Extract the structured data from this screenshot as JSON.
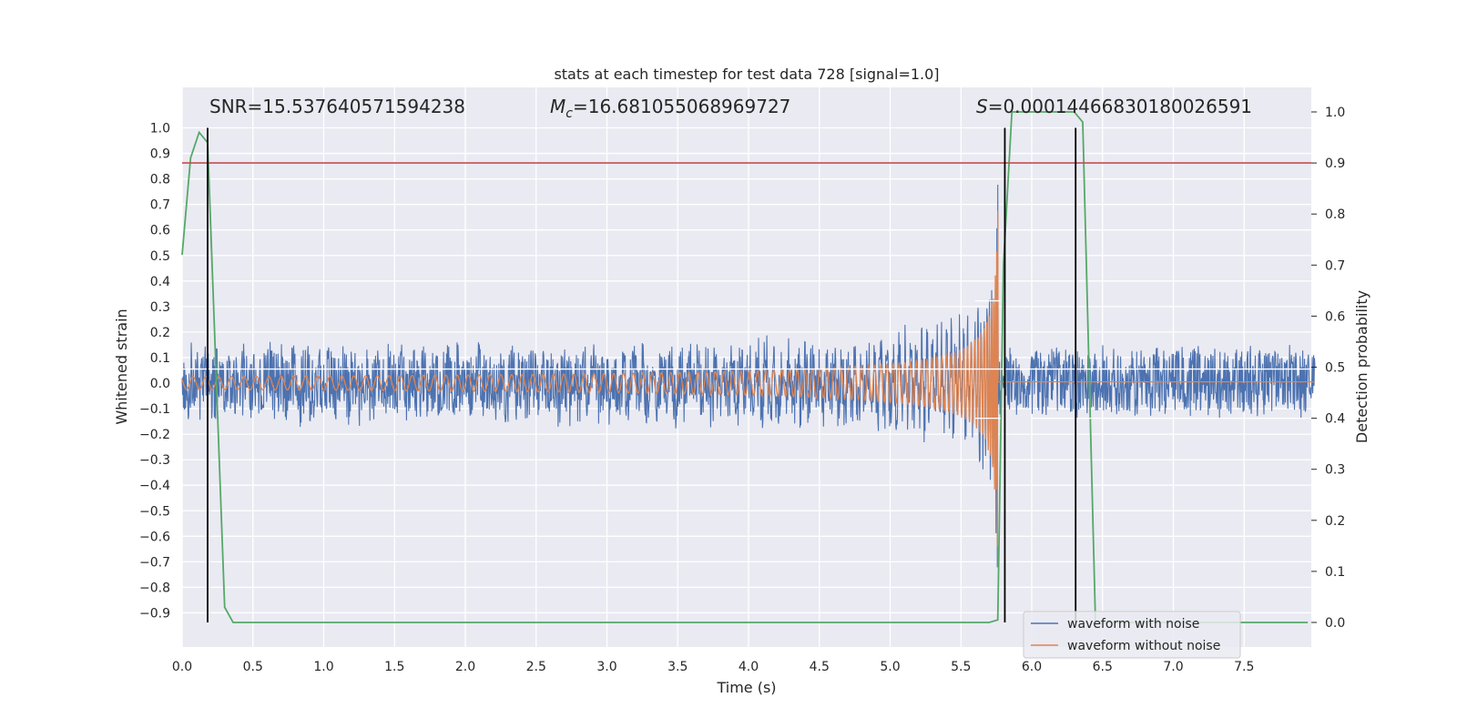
{
  "chart_data": {
    "type": "line",
    "title": "stats at each timestep for test data 728 [signal=1.0]",
    "xlabel": "Time (s)",
    "ylabel": "Whitened strain",
    "y2label": "Detection probability",
    "xlim": [
      0.0,
      8.0
    ],
    "ylim": [
      -1.0,
      1.1
    ],
    "y2lim": [
      -0.05,
      1.05
    ],
    "xticks": [
      "0.0",
      "0.5",
      "1.0",
      "1.5",
      "2.0",
      "2.5",
      "3.0",
      "3.5",
      "4.0",
      "4.5",
      "5.0",
      "5.5",
      "6.0",
      "6.5",
      "7.0",
      "7.5"
    ],
    "yticks": [
      "1.0",
      "0.9",
      "0.8",
      "0.7",
      "0.6",
      "0.5",
      "0.4",
      "0.3",
      "0.2",
      "0.1",
      "0.0",
      "−0.1",
      "−0.2",
      "−0.3",
      "−0.4",
      "−0.5",
      "−0.6",
      "−0.7",
      "−0.8",
      "−0.9"
    ],
    "y2ticks": [
      "1.0",
      "0.9",
      "0.8",
      "0.7",
      "0.6",
      "0.5",
      "0.4",
      "0.3",
      "0.2",
      "0.1",
      "0.0"
    ],
    "grid": true,
    "legend_position": "lower-right",
    "annotations": {
      "snr": "SNR=15.537640571594238",
      "mc_symbol": "M",
      "mc_sub": "c",
      "mc_value": "=16.681055068969727",
      "s_symbol": "S",
      "s_value": "=0.00014466830180026591"
    },
    "series": [
      {
        "name": "waveform with noise",
        "color": "#4c72b0",
        "axis": "left",
        "noise_amplitude": 0.15,
        "chirp_end_time": 5.76,
        "peak_amplitude": 1.0
      },
      {
        "name": "waveform without noise",
        "color": "#dd8452",
        "axis": "left",
        "start_amplitude": 0.025,
        "chirp_end_time": 5.76,
        "peak_amplitude": 0.95
      },
      {
        "color": "#55a868",
        "axis": "right",
        "x": [
          0.0,
          0.06,
          0.12,
          0.18,
          0.3,
          0.36,
          0.42,
          5.7,
          5.76,
          5.8,
          5.86,
          6.0,
          6.3,
          6.36,
          6.45,
          7.95
        ],
        "y": [
          0.72,
          0.91,
          0.96,
          0.94,
          0.03,
          0.0,
          0.0,
          0.0,
          0.005,
          0.7,
          1.0,
          1.0,
          1.0,
          0.98,
          0.0,
          0.0
        ]
      }
    ],
    "threshold": {
      "axis": "right",
      "value": 0.9,
      "color": "#c44e52"
    },
    "vlines": [
      0.18,
      5.81,
      6.31
    ],
    "hline_left_values": [
      0.055
    ],
    "hline_right_values": [
      0.63,
      0.4,
      0.4
    ]
  }
}
